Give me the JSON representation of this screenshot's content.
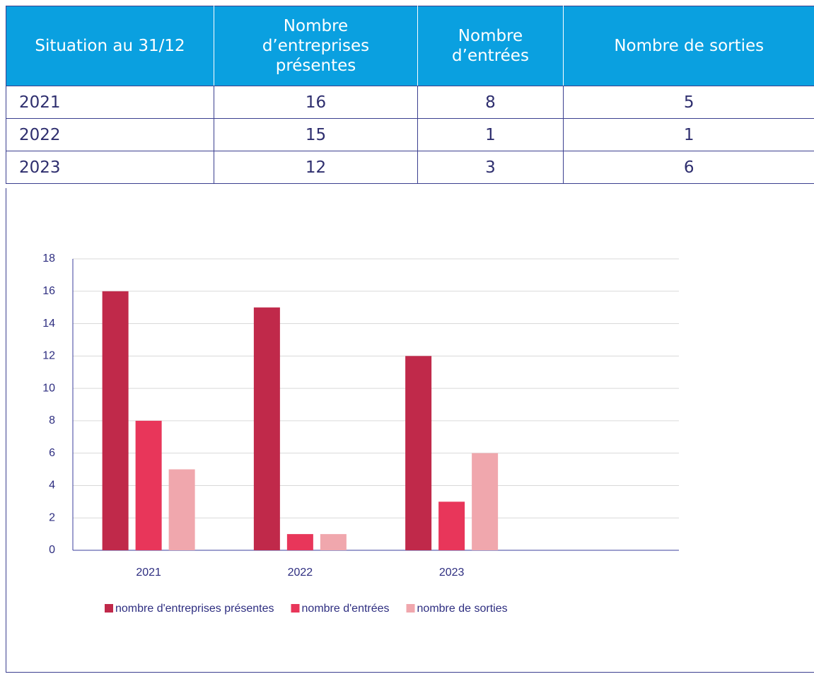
{
  "table": {
    "header": [
      "Situation au 31/12",
      "Nombre d’entreprises présentes",
      "Nombre d’entrées",
      "Nombre de sorties"
    ],
    "rows": [
      [
        "2021",
        16,
        8,
        5
      ],
      [
        "2022",
        15,
        1,
        1
      ],
      [
        "2023",
        12,
        3,
        6
      ]
    ]
  },
  "chart_data": {
    "type": "bar",
    "categories": [
      "2021",
      "2022",
      "2023",
      null
    ],
    "series": [
      {
        "name": "nombre d'entreprises présentes",
        "color": "#c0294a",
        "values": [
          16,
          15,
          12,
          null
        ]
      },
      {
        "name": "nombre d'entrées",
        "color": "#e8365a",
        "values": [
          8,
          1,
          3,
          null
        ]
      },
      {
        "name": "nombre de sorties",
        "color": "#f0a7ad",
        "values": [
          5,
          1,
          6,
          null
        ]
      }
    ],
    "ylim": [
      0,
      18
    ],
    "yticks": [
      0,
      2,
      4,
      6,
      8,
      10,
      12,
      14,
      16,
      18
    ],
    "grid": true,
    "legend": "bottom"
  }
}
